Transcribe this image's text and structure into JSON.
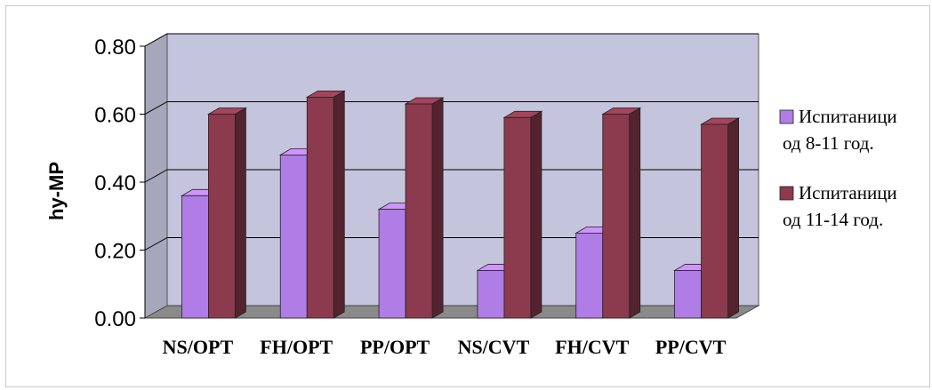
{
  "chart_data": {
    "type": "bar",
    "style": "3d-clustered-column",
    "categories": [
      "NS/OPT",
      "FH/OPT",
      "PP/OPT",
      "NS/CVT",
      "FH/CVT",
      "PP/CVT"
    ],
    "series": [
      {
        "name": "Испитаници од 8-11 год.",
        "name_lines": [
          "Испитаници",
          "од 8-11 год."
        ],
        "color": "#b07de6",
        "values": [
          0.36,
          0.48,
          0.32,
          0.14,
          0.25,
          0.14
        ]
      },
      {
        "name": "Испитаници од 11-14 год.",
        "name_lines": [
          "Испитаници",
          "од 11-14 год."
        ],
        "color": "#8c3a4e",
        "values": [
          0.6,
          0.65,
          0.63,
          0.59,
          0.6,
          0.57
        ]
      }
    ],
    "ylabel": "hy-MP",
    "yticks": [
      "0.00",
      "0.20",
      "0.40",
      "0.60",
      "0.80"
    ],
    "ylim": [
      0,
      0.8
    ],
    "grid": true,
    "legend": "right",
    "colors": {
      "wall": "#c4c4dc",
      "floor": "#8a8a8a",
      "gridline": "#000000"
    }
  }
}
